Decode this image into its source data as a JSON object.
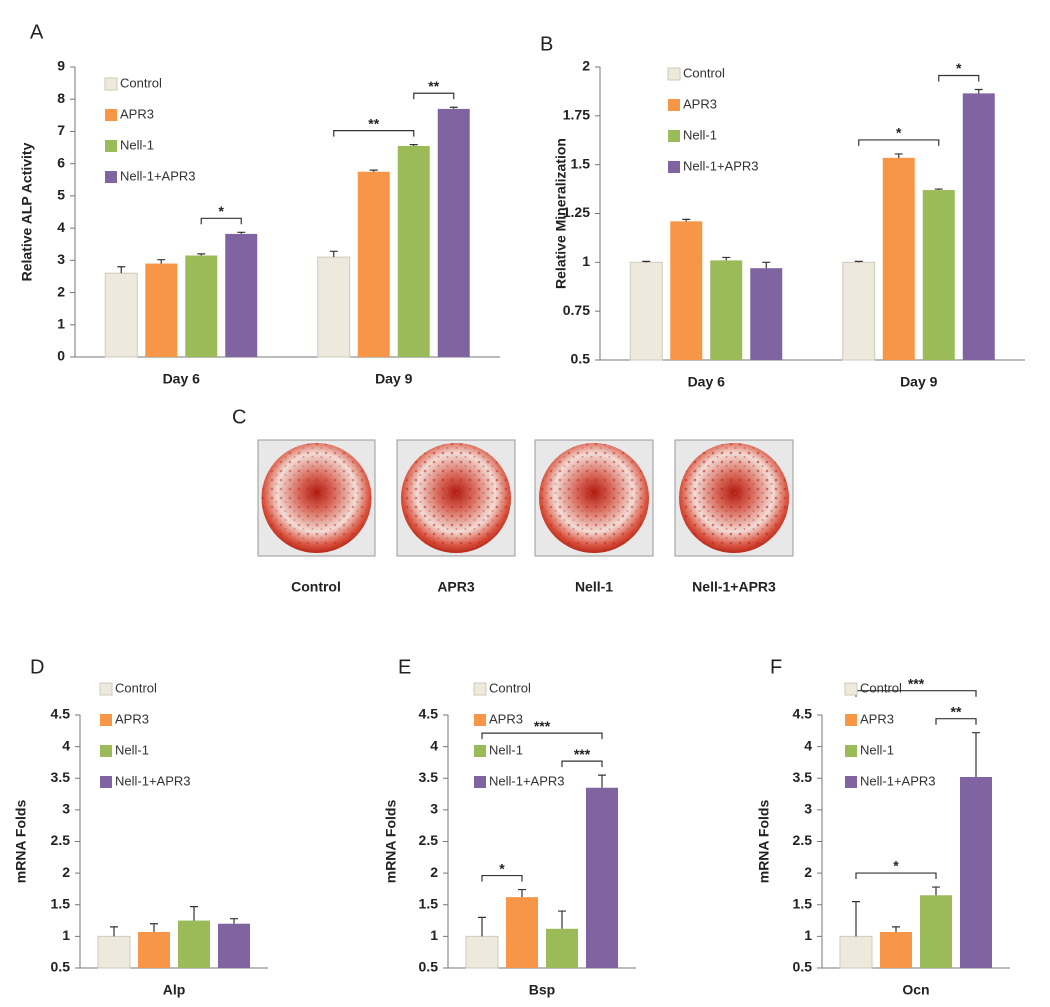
{
  "chart_data": [
    {
      "type": "bar",
      "panel": "A",
      "ylabel": "Relative ALP Activity",
      "categories": [
        "Day 6",
        "Day 9"
      ],
      "series": [
        {
          "name": "Control",
          "color": "#ede9dc",
          "values": [
            2.6,
            3.1
          ],
          "errors": [
            0.2,
            0.18
          ]
        },
        {
          "name": "APR3",
          "color": "#f79646",
          "values": [
            2.9,
            5.75
          ],
          "errors": [
            0.12,
            0.05
          ]
        },
        {
          "name": "Nell-1",
          "color": "#9bbb59",
          "values": [
            3.15,
            6.55
          ],
          "errors": [
            0.05,
            0.04
          ]
        },
        {
          "name": "Nell-1+APR3",
          "color": "#8064a2",
          "values": [
            3.82,
            7.7
          ],
          "errors": [
            0.05,
            0.05
          ]
        }
      ],
      "ylim": [
        0,
        9
      ],
      "yticks": [
        0,
        1,
        2,
        3,
        4,
        5,
        6,
        7,
        8,
        9
      ],
      "significance": [
        {
          "category": 0,
          "series": [
            2,
            3
          ],
          "label": "*"
        },
        {
          "category": 1,
          "series": [
            0,
            2
          ],
          "label": "**"
        },
        {
          "category": 1,
          "series": [
            2,
            3
          ],
          "label": "**"
        }
      ]
    },
    {
      "type": "bar",
      "panel": "B",
      "ylabel": "Relative Mineralization",
      "categories": [
        "Day 6",
        "Day 9"
      ],
      "series": [
        {
          "name": "Control",
          "color": "#ede9dc",
          "values": [
            1.0,
            1.0
          ],
          "errors": [
            0.005,
            0.005
          ]
        },
        {
          "name": "APR3",
          "color": "#f79646",
          "values": [
            1.21,
            1.535
          ],
          "errors": [
            0.01,
            0.02
          ]
        },
        {
          "name": "Nell-1",
          "color": "#9bbb59",
          "values": [
            1.01,
            1.37
          ],
          "errors": [
            0.015,
            0.005
          ]
        },
        {
          "name": "Nell-1+APR3",
          "color": "#8064a2",
          "values": [
            0.97,
            1.865
          ],
          "errors": [
            0.03,
            0.02
          ]
        }
      ],
      "ylim": [
        0.5,
        2
      ],
      "yticks": [
        0.5,
        0.75,
        1,
        1.25,
        1.5,
        1.75,
        2
      ],
      "significance": [
        {
          "category": 1,
          "series": [
            0,
            2
          ],
          "label": "*"
        },
        {
          "category": 1,
          "series": [
            2,
            3
          ],
          "label": "*"
        }
      ]
    },
    {
      "type": "bar",
      "panel": "D",
      "ylabel": "mRNA Folds",
      "categories": [
        "Alp"
      ],
      "series": [
        {
          "name": "Control",
          "color": "#ede9dc",
          "values": [
            1.0
          ],
          "errors": [
            0.15
          ]
        },
        {
          "name": "APR3",
          "color": "#f79646",
          "values": [
            1.07
          ],
          "errors": [
            0.13
          ]
        },
        {
          "name": "Nell-1",
          "color": "#9bbb59",
          "values": [
            1.25
          ],
          "errors": [
            0.22
          ]
        },
        {
          "name": "Nell-1+APR3",
          "color": "#8064a2",
          "values": [
            1.2
          ],
          "errors": [
            0.08
          ]
        }
      ],
      "ylim": [
        0.5,
        4.5
      ],
      "yticks": [
        0.5,
        1,
        1.5,
        2,
        2.5,
        3,
        3.5,
        4,
        4.5
      ],
      "significance": []
    },
    {
      "type": "bar",
      "panel": "E",
      "ylabel": "mRNA Folds",
      "categories": [
        "Bsp"
      ],
      "series": [
        {
          "name": "Control",
          "color": "#ede9dc",
          "values": [
            1.0
          ],
          "errors": [
            0.3
          ]
        },
        {
          "name": "APR3",
          "color": "#f79646",
          "values": [
            1.62
          ],
          "errors": [
            0.12
          ]
        },
        {
          "name": "Nell-1",
          "color": "#9bbb59",
          "values": [
            1.12
          ],
          "errors": [
            0.28
          ]
        },
        {
          "name": "Nell-1+APR3",
          "color": "#8064a2",
          "values": [
            3.35
          ],
          "errors": [
            0.2
          ]
        }
      ],
      "ylim": [
        0.5,
        4.5
      ],
      "yticks": [
        0.5,
        1,
        1.5,
        2,
        2.5,
        3,
        3.5,
        4,
        4.5
      ],
      "significance": [
        {
          "category": 0,
          "series": [
            0,
            1
          ],
          "label": "*"
        },
        {
          "category": 0,
          "series": [
            2,
            3
          ],
          "label": "***"
        },
        {
          "category": 0,
          "series": [
            0,
            3
          ],
          "label": "***"
        }
      ]
    },
    {
      "type": "bar",
      "panel": "F",
      "ylabel": "mRNA Folds",
      "categories": [
        "Ocn"
      ],
      "series": [
        {
          "name": "Control",
          "color": "#ede9dc",
          "values": [
            1.0
          ],
          "errors": [
            0.55
          ]
        },
        {
          "name": "APR3",
          "color": "#f79646",
          "values": [
            1.07
          ],
          "errors": [
            0.08
          ]
        },
        {
          "name": "Nell-1",
          "color": "#9bbb59",
          "values": [
            1.65
          ],
          "errors": [
            0.13
          ]
        },
        {
          "name": "Nell-1+APR3",
          "color": "#8064a2",
          "values": [
            3.52
          ],
          "errors": [
            0.7
          ]
        }
      ],
      "ylim": [
        0.5,
        4.5
      ],
      "yticks": [
        0.5,
        1,
        1.5,
        2,
        2.5,
        3,
        3.5,
        4,
        4.5
      ],
      "significance": [
        {
          "category": 0,
          "series": [
            0,
            2
          ],
          "label": "*"
        },
        {
          "category": 0,
          "series": [
            2,
            3
          ],
          "label": "**"
        },
        {
          "category": 0,
          "series": [
            0,
            3
          ],
          "label": "***"
        }
      ]
    }
  ],
  "staining": {
    "panel": "C",
    "labels": [
      "Control",
      "APR3",
      "Nell-1",
      "Nell-1+APR3"
    ]
  }
}
